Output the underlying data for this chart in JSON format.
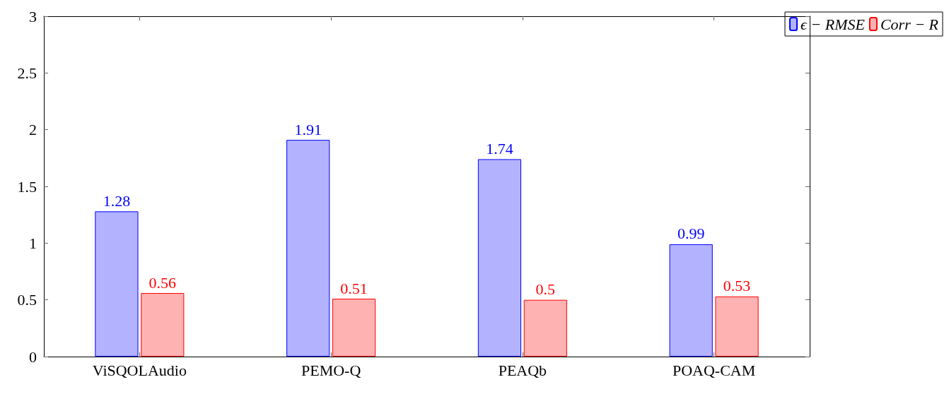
{
  "chart_data": {
    "type": "bar",
    "categories": [
      "ViSQOLAudio",
      "PEMO-Q",
      "PEAQb",
      "POAQ-CAM"
    ],
    "series": [
      {
        "name": "ϵ − RMSE",
        "color": "#0000ff",
        "values": [
          1.28,
          1.91,
          1.74,
          0.99
        ]
      },
      {
        "name": "Corr − R",
        "color": "#ff0000",
        "values": [
          0.56,
          0.51,
          0.5,
          0.53
        ]
      }
    ],
    "ylim": [
      0,
      3
    ],
    "yticks": [
      0,
      0.5,
      1,
      1.5,
      2,
      2.5,
      3
    ],
    "data_labels": true,
    "grid": false,
    "legend": "top right"
  }
}
